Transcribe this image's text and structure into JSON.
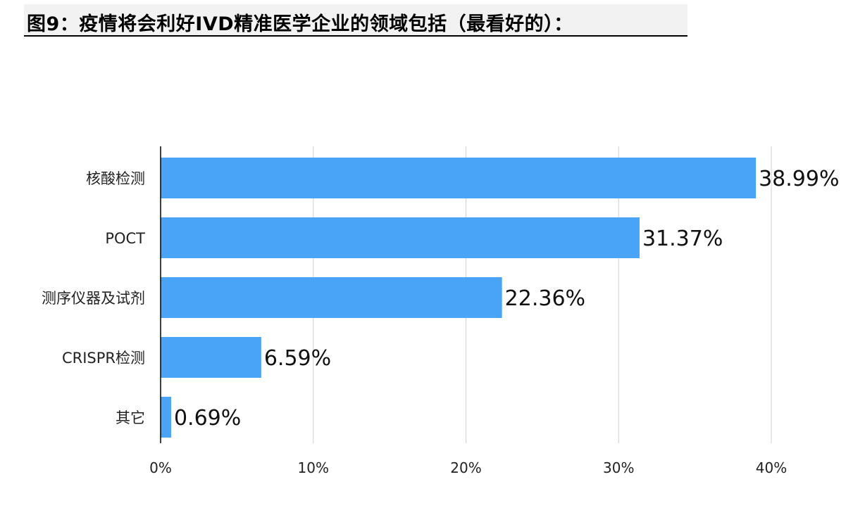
{
  "title": "图9：疫情将会利好IVD精准医学企业的领域包括（最看好的）：",
  "colors": {
    "bar": "#49a3f7",
    "grid": "#d0d0d0",
    "axis": "#000000"
  },
  "chart_data": {
    "type": "bar",
    "orientation": "horizontal",
    "categories": [
      "核酸检测",
      "POCT",
      "测序仪器及试剂",
      "CRISPR检测",
      "其它"
    ],
    "values": [
      38.99,
      31.37,
      22.36,
      6.59,
      0.69
    ],
    "value_labels": [
      "38.99%",
      "31.37%",
      "22.36%",
      "6.59%",
      "0.69%"
    ],
    "xlim": [
      0,
      40
    ],
    "xticks": [
      0,
      10,
      20,
      30,
      40
    ],
    "xtick_labels": [
      "0%",
      "10%",
      "20%",
      "30%",
      "40%"
    ],
    "grid": true
  }
}
